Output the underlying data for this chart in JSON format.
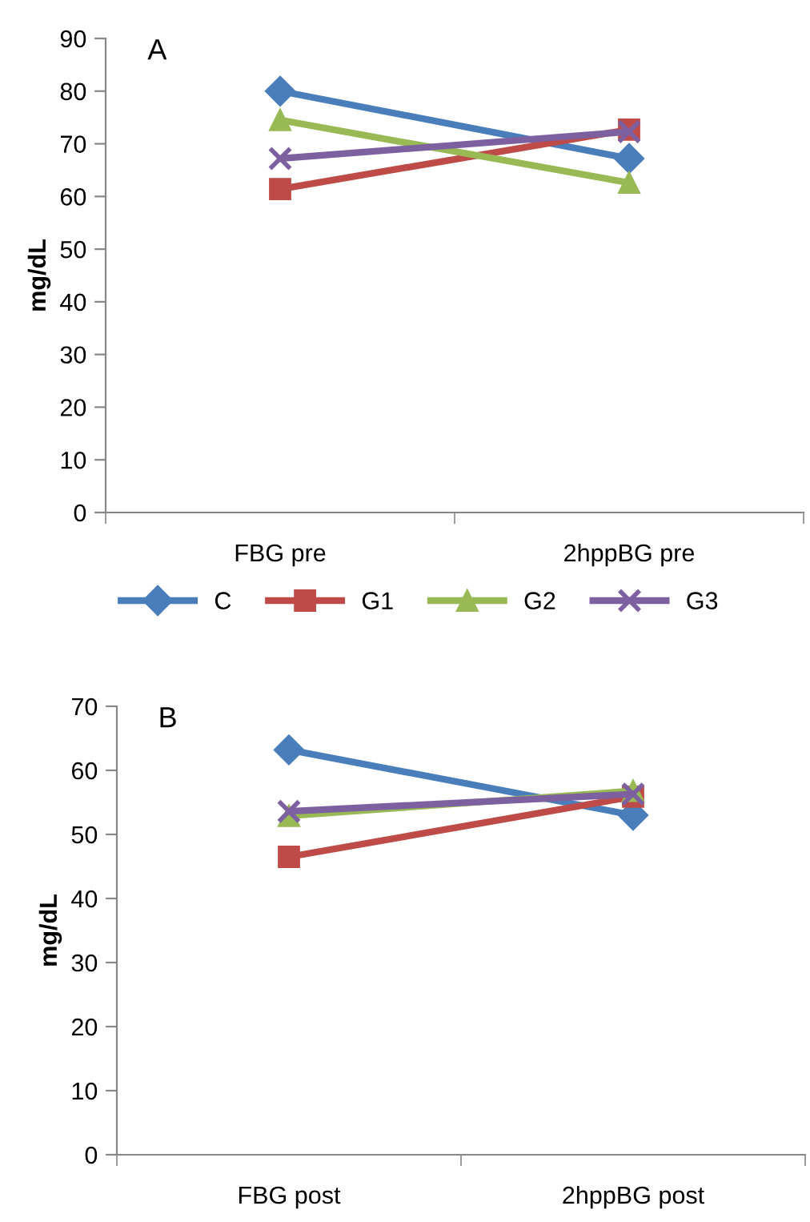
{
  "chart_data": [
    {
      "type": "line",
      "title": "A",
      "ylabel": "mg/dL",
      "categories": [
        "FBG pre",
        "2hppBG pre"
      ],
      "ylim": [
        0,
        90
      ],
      "yticks": [
        0,
        10,
        20,
        30,
        40,
        50,
        60,
        70,
        80,
        90
      ],
      "grid": false,
      "legend": "bottom",
      "line_style": "solid",
      "series": [
        {
          "name": "C",
          "color": "#4a7ebb",
          "marker": "diamond",
          "values": [
            80,
            67.2
          ]
        },
        {
          "name": "G1",
          "color": "#be4b48",
          "marker": "square",
          "values": [
            61.4,
            72.7
          ]
        },
        {
          "name": "G2",
          "color": "#98b954",
          "marker": "triangle",
          "values": [
            74.5,
            62.6
          ]
        },
        {
          "name": "G3",
          "color": "#7d60a0",
          "marker": "cross",
          "values": [
            67.2,
            72.3
          ]
        }
      ]
    },
    {
      "type": "line",
      "title": "B",
      "ylabel": "mg/dL",
      "categories": [
        "FBG post",
        "2hppBG post"
      ],
      "ylim": [
        0,
        70
      ],
      "yticks": [
        0,
        10,
        20,
        30,
        40,
        50,
        60,
        70
      ],
      "grid": false,
      "legend": false,
      "line_style": "solid",
      "series": [
        {
          "color": "#4a7ebb",
          "marker": "diamond",
          "values": [
            63.2,
            53
          ]
        },
        {
          "color": "#be4b48",
          "marker": "square",
          "values": [
            46.5,
            55.9
          ]
        },
        {
          "color": "#98b954",
          "marker": "triangle",
          "values": [
            52.9,
            56.8
          ]
        },
        {
          "color": "#7d60a0",
          "marker": "cross",
          "values": [
            53.6,
            56.3
          ]
        }
      ]
    }
  ]
}
